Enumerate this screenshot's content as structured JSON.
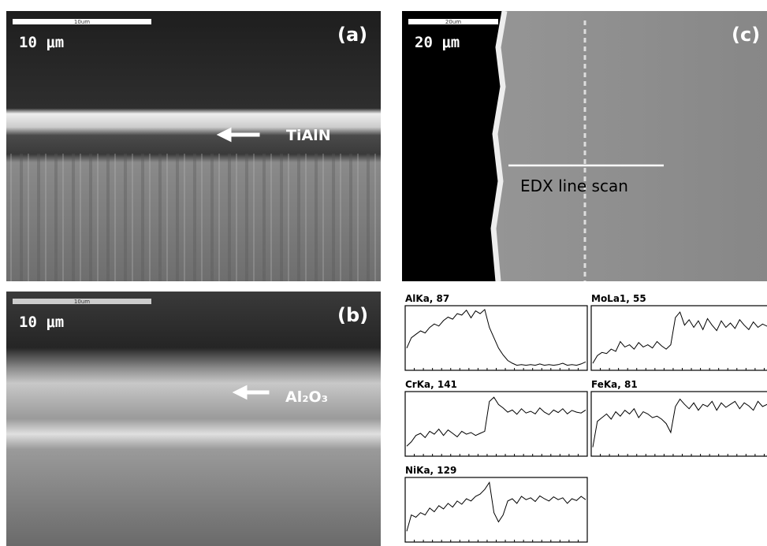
{
  "panels": [
    {
      "label": "(a)",
      "scale_text": "10 μm",
      "scale_bar_text": "10um",
      "annotation": "TiAlN"
    },
    {
      "label": "(b)",
      "scale_text": "10 μm",
      "scale_bar_text": "10um",
      "annotation": "Al₂O₃"
    },
    {
      "label": "(c)",
      "scale_text": "20 μm",
      "scale_bar_text": "20um",
      "annotation": "EDX line scan"
    }
  ],
  "edx": [
    {
      "title": "AlKa, 87",
      "ylim": [
        0,
        87
      ],
      "values": [
        30,
        45,
        50,
        55,
        52,
        60,
        65,
        62,
        70,
        75,
        72,
        80,
        78,
        85,
        74,
        84,
        80,
        86,
        60,
        45,
        30,
        20,
        12,
        8,
        5,
        6,
        5,
        6,
        5,
        7,
        5,
        6,
        5,
        6,
        8,
        5,
        6,
        5,
        7,
        10
      ]
    },
    {
      "title": "MoLa1, 55",
      "ylim": [
        0,
        55
      ],
      "values": [
        5,
        12,
        15,
        14,
        18,
        16,
        25,
        20,
        22,
        18,
        24,
        20,
        22,
        19,
        25,
        21,
        18,
        22,
        47,
        52,
        40,
        45,
        38,
        44,
        36,
        46,
        40,
        35,
        44,
        38,
        42,
        37,
        45,
        40,
        36,
        43,
        38,
        41,
        39,
        42
      ]
    },
    {
      "title": "CrKa, 141",
      "ylim": [
        0,
        141
      ],
      "values": [
        20,
        30,
        45,
        50,
        40,
        55,
        48,
        60,
        45,
        58,
        50,
        42,
        55,
        48,
        52,
        45,
        50,
        55,
        125,
        135,
        118,
        110,
        100,
        105,
        95,
        108,
        98,
        102,
        96,
        110,
        100,
        94,
        105,
        99,
        108,
        96,
        104,
        100,
        98,
        105
      ]
    },
    {
      "title": "FeKa, 81",
      "ylim": [
        0,
        81
      ],
      "values": [
        10,
        45,
        50,
        55,
        48,
        58,
        52,
        60,
        55,
        62,
        50,
        58,
        55,
        50,
        52,
        48,
        42,
        30,
        65,
        75,
        68,
        62,
        70,
        60,
        68,
        65,
        72,
        60,
        70,
        64,
        68,
        72,
        62,
        70,
        66,
        60,
        72,
        65,
        68,
        70
      ]
    },
    {
      "title": "NiKa, 129",
      "ylim": [
        0,
        129
      ],
      "values": [
        20,
        55,
        50,
        60,
        55,
        70,
        62,
        75,
        68,
        80,
        72,
        85,
        78,
        90,
        85,
        95,
        100,
        110,
        125,
        60,
        40,
        55,
        85,
        90,
        80,
        95,
        88,
        92,
        84,
        96,
        90,
        85,
        94,
        88,
        92,
        80,
        90,
        86,
        95,
        88
      ]
    }
  ]
}
